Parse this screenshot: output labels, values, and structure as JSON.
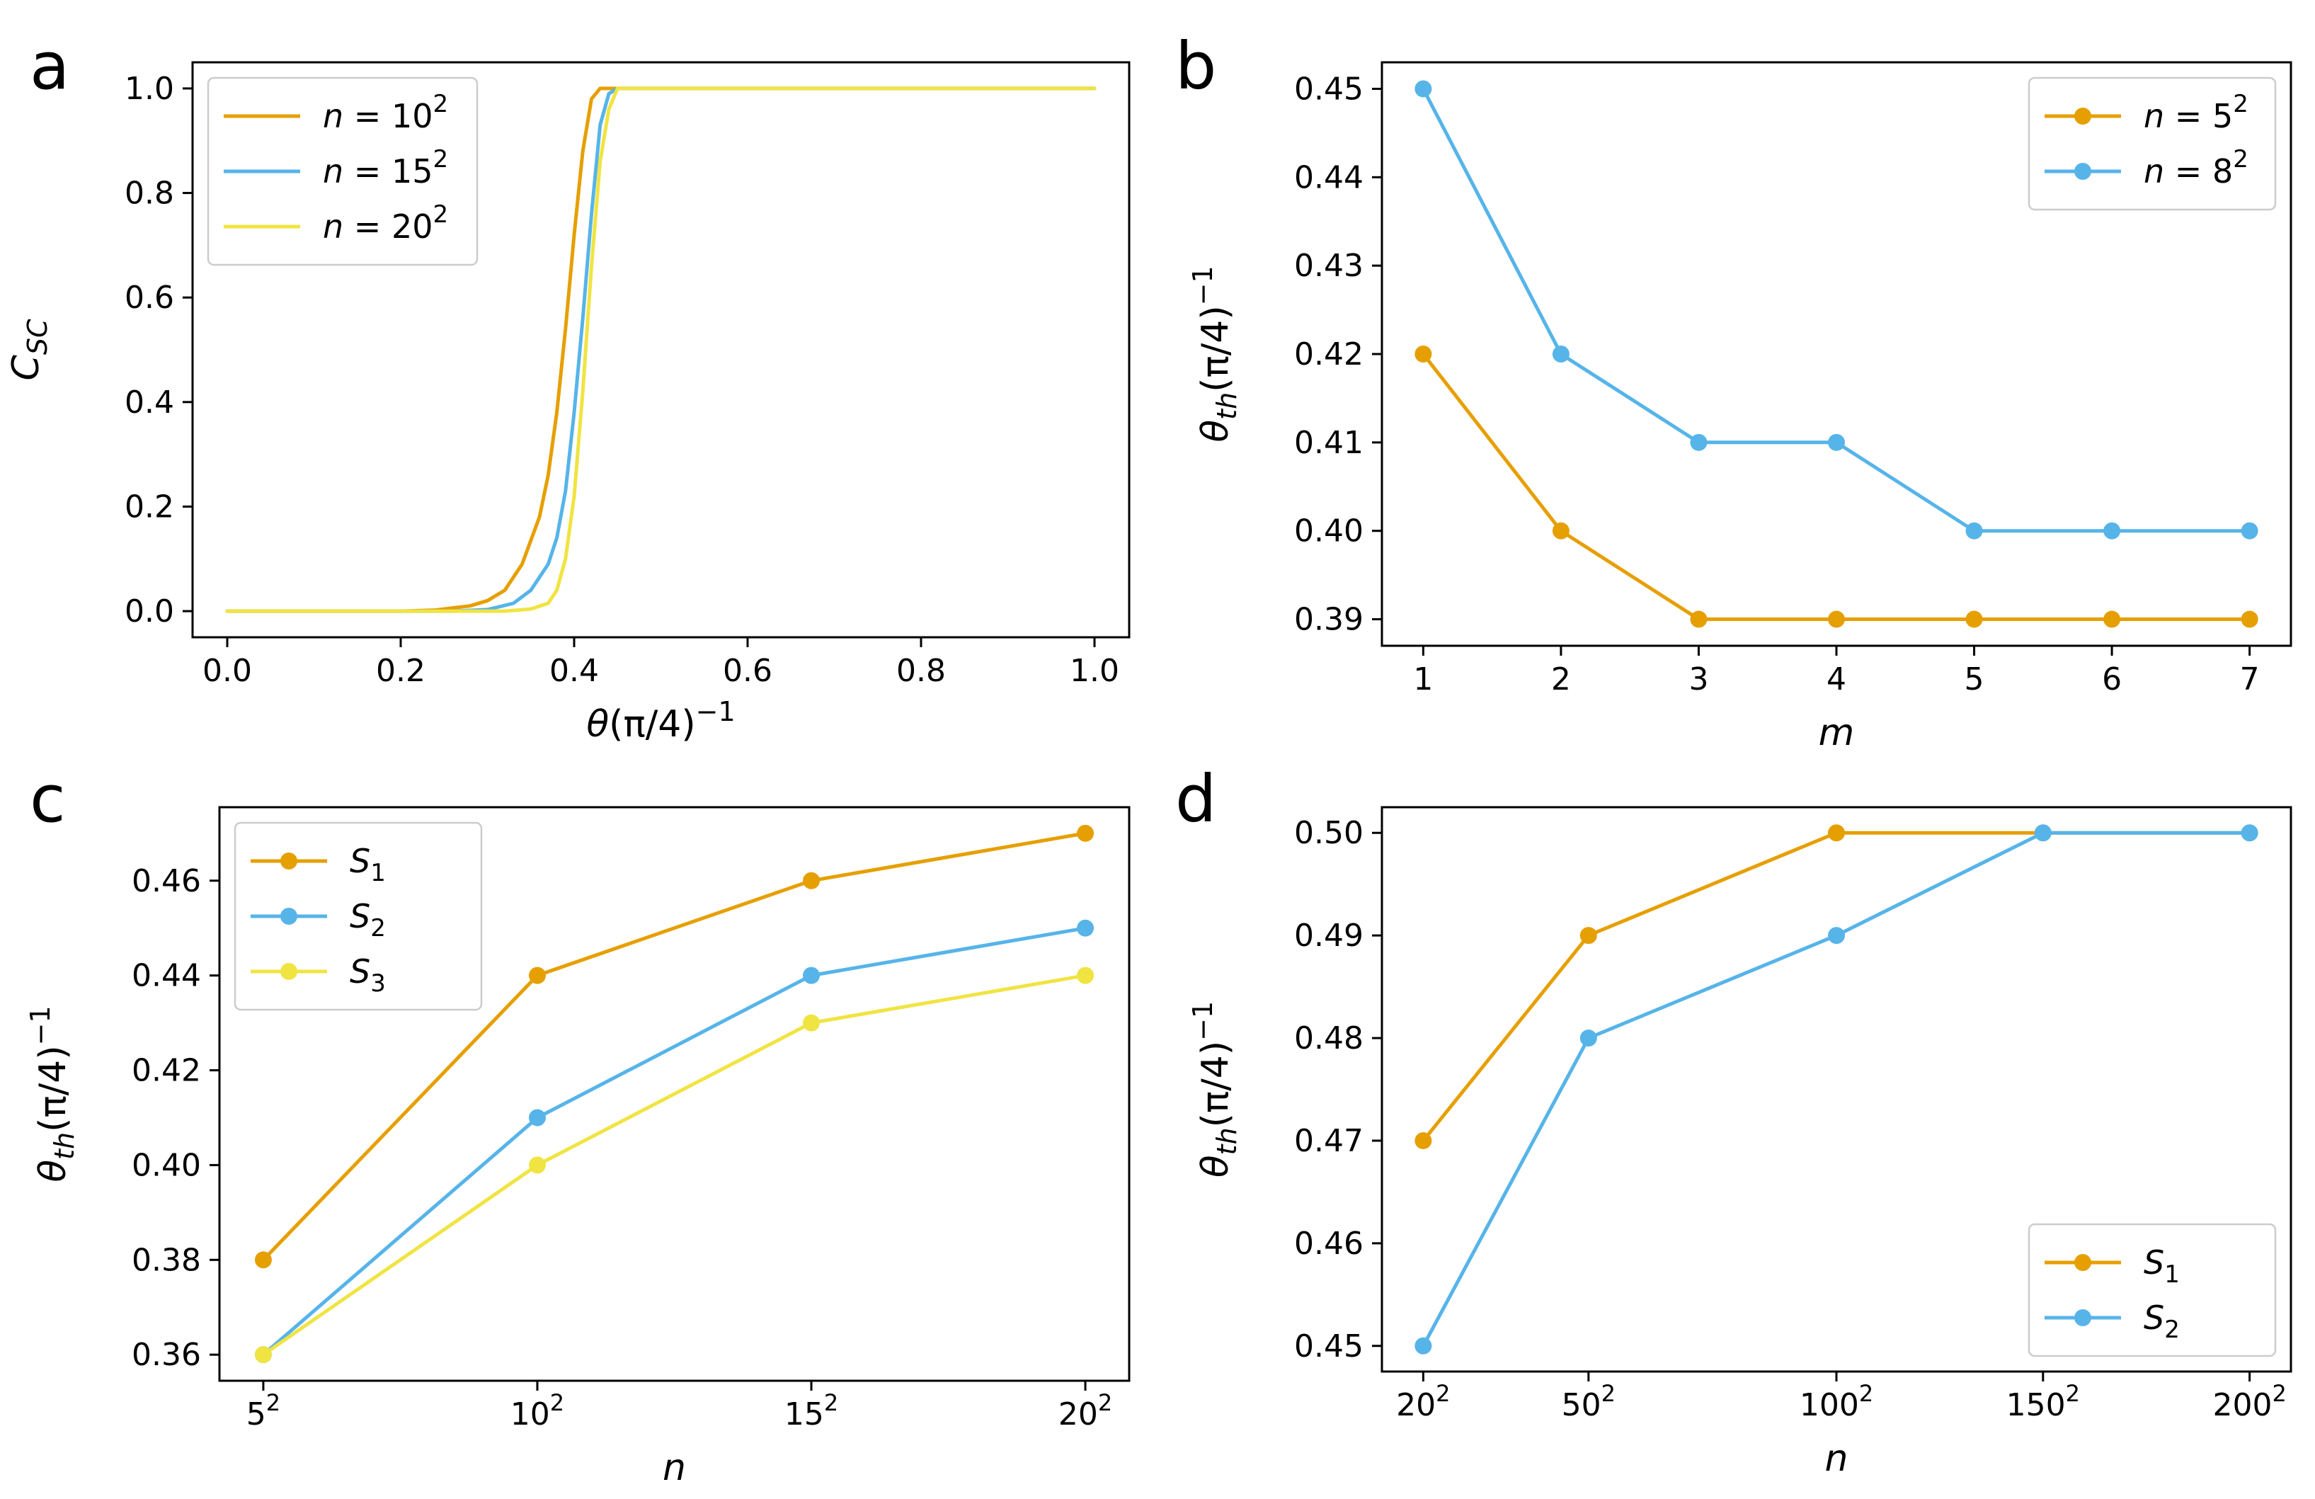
{
  "colors": {
    "orange": "#E69F00",
    "blue": "#56B4E9",
    "yellow": "#F0E442"
  },
  "chart_data": [
    {
      "panel": "a",
      "type": "line",
      "xlabel": "θ(π/4)⁻¹",
      "ylabel": "C_SC",
      "xlim": [
        -0.04,
        1.04
      ],
      "ylim": [
        -0.05,
        1.05
      ],
      "xticks": [
        0.0,
        0.2,
        0.4,
        0.6,
        0.8,
        1.0
      ],
      "xtick_labels": [
        "0.0",
        "0.2",
        "0.4",
        "0.6",
        "0.8",
        "1.0"
      ],
      "yticks": [
        0.0,
        0.2,
        0.4,
        0.6,
        0.8,
        1.0
      ],
      "ytick_labels": [
        "0.0",
        "0.2",
        "0.4",
        "0.6",
        "0.8",
        "1.0"
      ],
      "markers": false,
      "legend_position": "top-left",
      "series": [
        {
          "name": "n = 10²",
          "label": "n = 10",
          "sup": "2",
          "color": "#E69F00",
          "x": [
            0.0,
            0.2,
            0.24,
            0.28,
            0.3,
            0.32,
            0.34,
            0.36,
            0.37,
            0.38,
            0.39,
            0.4,
            0.41,
            0.42,
            0.43,
            0.44,
            1.0
          ],
          "y": [
            0.0,
            0.0,
            0.002,
            0.01,
            0.02,
            0.04,
            0.09,
            0.18,
            0.26,
            0.38,
            0.54,
            0.72,
            0.88,
            0.98,
            1.0,
            1.0,
            1.0
          ]
        },
        {
          "name": "n = 15²",
          "label": "n = 15",
          "sup": "2",
          "color": "#56B4E9",
          "x": [
            0.0,
            0.26,
            0.3,
            0.33,
            0.35,
            0.37,
            0.38,
            0.39,
            0.4,
            0.41,
            0.42,
            0.43,
            0.44,
            0.45,
            1.0
          ],
          "y": [
            0.0,
            0.0,
            0.003,
            0.015,
            0.04,
            0.09,
            0.14,
            0.23,
            0.38,
            0.56,
            0.76,
            0.93,
            0.99,
            1.0,
            1.0
          ]
        },
        {
          "name": "n = 20²",
          "label": "n = 20",
          "sup": "2",
          "color": "#F0E442",
          "x": [
            0.0,
            0.32,
            0.35,
            0.37,
            0.38,
            0.39,
            0.4,
            0.41,
            0.42,
            0.43,
            0.44,
            0.45,
            0.46,
            1.0
          ],
          "y": [
            0.0,
            0.0,
            0.004,
            0.015,
            0.04,
            0.1,
            0.22,
            0.42,
            0.66,
            0.86,
            0.96,
            1.0,
            1.0,
            1.0
          ]
        }
      ]
    },
    {
      "panel": "b",
      "type": "line",
      "xlabel": "m",
      "ylabel": "θ_th(π/4)⁻¹",
      "xlim": [
        0.7,
        7.3
      ],
      "ylim": [
        0.387,
        0.453
      ],
      "xticks": [
        1,
        2,
        3,
        4,
        5,
        6,
        7
      ],
      "xtick_labels": [
        "1",
        "2",
        "3",
        "4",
        "5",
        "6",
        "7"
      ],
      "yticks": [
        0.39,
        0.4,
        0.41,
        0.42,
        0.43,
        0.44,
        0.45
      ],
      "ytick_labels": [
        "0.39",
        "0.40",
        "0.41",
        "0.42",
        "0.43",
        "0.44",
        "0.45"
      ],
      "markers": true,
      "legend_position": "top-right",
      "series": [
        {
          "name": "n = 5²",
          "label": "n = 5",
          "sup": "2",
          "color": "#E69F00",
          "x": [
            1,
            2,
            3,
            4,
            5,
            6,
            7
          ],
          "y": [
            0.42,
            0.4,
            0.39,
            0.39,
            0.39,
            0.39,
            0.39
          ]
        },
        {
          "name": "n = 8²",
          "label": "n = 8",
          "sup": "2",
          "color": "#56B4E9",
          "x": [
            1,
            2,
            3,
            4,
            5,
            6,
            7
          ],
          "y": [
            0.45,
            0.42,
            0.41,
            0.41,
            0.4,
            0.4,
            0.4
          ]
        }
      ]
    },
    {
      "panel": "c",
      "type": "line",
      "xlabel": "n",
      "ylabel": "θ_th(π/4)⁻¹",
      "xlim": [
        -0.16,
        3.16
      ],
      "ylim": [
        0.3545,
        0.4755
      ],
      "xticks": [
        0,
        1,
        2,
        3
      ],
      "xtick_labels": [
        "5",
        "10",
        "15",
        "20"
      ],
      "xtick_sup": "2",
      "categories": [
        "5²",
        "10²",
        "15²",
        "20²"
      ],
      "yticks": [
        0.36,
        0.38,
        0.4,
        0.42,
        0.44,
        0.46
      ],
      "ytick_labels": [
        "0.36",
        "0.38",
        "0.40",
        "0.42",
        "0.44",
        "0.46"
      ],
      "markers": true,
      "legend_position": "top-left",
      "series": [
        {
          "name": "S₁",
          "label": "S",
          "sub": "1",
          "color": "#E69F00",
          "x": [
            0,
            1,
            2,
            3
          ],
          "y": [
            0.38,
            0.44,
            0.46,
            0.47
          ]
        },
        {
          "name": "S₂",
          "label": "S",
          "sub": "2",
          "color": "#56B4E9",
          "x": [
            0,
            1,
            2,
            3
          ],
          "y": [
            0.36,
            0.41,
            0.44,
            0.45
          ]
        },
        {
          "name": "S₃",
          "label": "S",
          "sub": "3",
          "color": "#F0E442",
          "x": [
            0,
            1,
            2,
            3
          ],
          "y": [
            0.36,
            0.4,
            0.43,
            0.44
          ]
        }
      ]
    },
    {
      "panel": "d",
      "type": "line",
      "xlabel": "n",
      "ylabel": "θ_th(π/4)⁻¹",
      "xlim": [
        -0.2,
        4.2
      ],
      "ylim": [
        0.4475,
        0.5025
      ],
      "xticks": [
        0,
        0.8,
        2,
        3,
        4
      ],
      "xtick_labels": [
        "20",
        "50",
        "100",
        "150",
        "200"
      ],
      "xtick_sup": "2",
      "categories": [
        "20²",
        "50²",
        "100²",
        "150²",
        "200²"
      ],
      "yticks": [
        0.45,
        0.46,
        0.47,
        0.48,
        0.49,
        0.5
      ],
      "ytick_labels": [
        "0.45",
        "0.46",
        "0.47",
        "0.48",
        "0.49",
        "0.50"
      ],
      "markers": true,
      "legend_position": "bottom-right",
      "series": [
        {
          "name": "S₁",
          "label": "S",
          "sub": "1",
          "color": "#E69F00",
          "x": [
            0,
            0.8,
            2,
            3,
            4
          ],
          "y": [
            0.47,
            0.49,
            0.5,
            0.5,
            0.5
          ]
        },
        {
          "name": "S₂",
          "label": "S",
          "sub": "2",
          "color": "#56B4E9",
          "x": [
            0,
            0.8,
            2,
            3,
            4
          ],
          "y": [
            0.45,
            0.48,
            0.49,
            0.5,
            0.5
          ]
        }
      ]
    }
  ]
}
